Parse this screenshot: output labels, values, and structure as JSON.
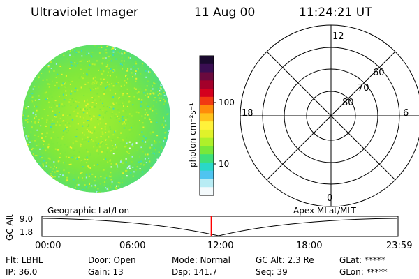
{
  "header": {
    "instrument": "Ultraviolet Imager",
    "date": "11 Aug 00",
    "time": "11:24:21 UT"
  },
  "colorbar": {
    "unit_label": "photon cm⁻²s⁻¹",
    "ticks": [
      "100",
      "10"
    ],
    "levels": [
      1,
      10,
      100,
      1000
    ],
    "colors": [
      "#1a0a2e",
      "#3a0e52",
      "#6a0a3e",
      "#a3002a",
      "#d4001e",
      "#f13a12",
      "#ff8c0a",
      "#ffc21a",
      "#fff23a",
      "#e0f22a",
      "#aef02a",
      "#78e83a",
      "#3ee07a",
      "#2ad8c8",
      "#4fc4f0",
      "#b8ecf4",
      "#f4fafc"
    ]
  },
  "polar_plot": {
    "mlt_labels": {
      "top": "12",
      "right": "6",
      "left": "18",
      "bottom": "0"
    },
    "lat_labels": [
      "60",
      "70",
      "80"
    ],
    "lat_circles": [
      50,
      60,
      70,
      80
    ]
  },
  "timeline": {
    "left_title": "Geographic Lat/Lon",
    "right_title": "Apex MLat/MLT",
    "yaxis_label": "GC Alt",
    "y_ticks": [
      "9.0",
      "1.8"
    ],
    "time_ticks": [
      "00:00",
      "06:00",
      "12:00",
      "18:00",
      "23:59"
    ],
    "current_time": "11:24",
    "accent_color": "#ff0000"
  },
  "info": {
    "filter": "Flt: LBHL",
    "ip": "IP: 36.0",
    "door": "Door: Open",
    "gain": "Gain: 13",
    "mode": "Mode: Normal",
    "dsp": "Dsp:   141.7",
    "gc_alt": "GC Alt: 2.3 Re",
    "seq": "Seq: 39",
    "glat": "GLat: *****",
    "glon": "GLon: *****"
  }
}
